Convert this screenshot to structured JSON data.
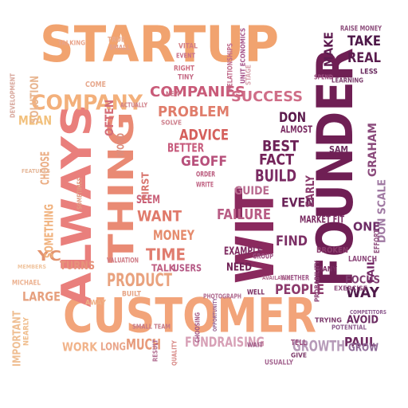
{
  "words": [
    {
      "text": "STARTUP",
      "color": "#f1a36f"
    },
    {
      "text": "CUSTOMER",
      "color": "#f2a47a"
    },
    {
      "text": "FOUNDER",
      "color": "#6f1f54"
    },
    {
      "text": "ALWAYS",
      "color": "#e97f7c"
    },
    {
      "text": "THING",
      "color": "#e98a74"
    },
    {
      "text": "WIT",
      "color": "#8a2a5e"
    },
    {
      "text": "COMPANY",
      "color": "#f3b07b"
    },
    {
      "text": "COMPANIES",
      "color": "#c95b79"
    },
    {
      "text": "SUCCESS",
      "color": "#cf6d87"
    },
    {
      "text": "PROBLEM",
      "color": "#e07d6b"
    },
    {
      "text": "ADVICE",
      "color": "#d5605c"
    },
    {
      "text": "BETTER",
      "color": "#c75b7c"
    },
    {
      "text": "GEOFF",
      "color": "#b7507b"
    },
    {
      "text": "DON",
      "color": "#5b1a4c"
    },
    {
      "text": "BEST",
      "color": "#6d2257"
    },
    {
      "text": "FACT",
      "color": "#74245a"
    },
    {
      "text": "BUILD",
      "color": "#7a2a62"
    },
    {
      "text": "GUIDE",
      "color": "#b86a8f"
    },
    {
      "text": "EVEN",
      "color": "#6a2257"
    },
    {
      "text": "FIND",
      "color": "#7c2f65"
    },
    {
      "text": "PEOPLE",
      "color": "#8c3a6c"
    },
    {
      "text": "FAILURE",
      "color": "#b85d85"
    },
    {
      "text": "WANT",
      "color": "#e07a6b"
    },
    {
      "text": "MONEY",
      "color": "#e58b6c"
    },
    {
      "text": "SEEM",
      "color": "#c96179"
    },
    {
      "text": "TIME",
      "color": "#e07c6e"
    },
    {
      "text": "PRODUCT",
      "color": "#e9a27e"
    },
    {
      "text": "TALK",
      "color": "#c05e82"
    },
    {
      "text": "USERS",
      "color": "#b55985"
    },
    {
      "text": "NEED",
      "color": "#6e2054"
    },
    {
      "text": "EXAMPLE",
      "color": "#7e2a60"
    },
    {
      "text": "FUNDRAISING",
      "color": "#d7a0b6"
    },
    {
      "text": "GROWTH",
      "color": "#b69ab8"
    },
    {
      "text": "MUCH",
      "color": "#e79a7a"
    },
    {
      "text": "WORK",
      "color": "#f1b38a"
    },
    {
      "text": "LONG",
      "color": "#e9a58a"
    },
    {
      "text": "YC",
      "color": "#e3946f"
    },
    {
      "text": "LARGE",
      "color": "#e6a07e"
    },
    {
      "text": "CHOOSE",
      "color": "#ebae85"
    },
    {
      "text": "SOMETHING",
      "color": "#f0b27e"
    },
    {
      "text": "TURNS",
      "color": "#e6937b"
    },
    {
      "text": "MEAN",
      "color": "#f2c07b"
    },
    {
      "text": "SOLUTION",
      "color": "#e8b590"
    },
    {
      "text": "IMPORTANT",
      "color": "#efbe92"
    },
    {
      "text": "OFTEN",
      "color": "#d46c77"
    },
    {
      "text": "TAKE",
      "color": "#4d1848"
    },
    {
      "text": "REAL",
      "color": "#5a1d4e"
    },
    {
      "text": "MAKE",
      "color": "#5e1c50"
    },
    {
      "text": "PAUL",
      "color": "#6e2a60"
    },
    {
      "text": "GRAHAM",
      "color": "#8b4b7c"
    },
    {
      "text": "DON SCALE",
      "color": "#a07aa3"
    },
    {
      "text": "ONE",
      "color": "#6d2d66"
    },
    {
      "text": "WAY",
      "color": "#4f1949"
    },
    {
      "text": "FOCUS",
      "color": "#7f3d70"
    },
    {
      "text": "AVOID",
      "color": "#6b2b61"
    },
    {
      "text": "GROW",
      "color": "#8f6b98"
    },
    {
      "text": "FAIL",
      "color": "#732865"
    },
    {
      "text": "LAUNCH",
      "color": "#8d4a7c"
    },
    {
      "text": "EFFORT",
      "color": "#955985"
    },
    {
      "text": "MARKET FIT",
      "color": "#7a2c62"
    },
    {
      "text": "EARLY",
      "color": "#8a3b6c"
    },
    {
      "text": "ALMOST",
      "color": "#7a2b62"
    },
    {
      "text": "USUALLY",
      "color": "#a46590"
    },
    {
      "text": "ACTUALLY",
      "color": "#d07f88"
    },
    {
      "text": "SAM",
      "color": "#6b2b5c"
    },
    {
      "text": "WRITE",
      "color": "#c06383"
    },
    {
      "text": "ORDER",
      "color": "#b9587b"
    },
    {
      "text": "FIRST",
      "color": "#d8766f"
    },
    {
      "text": "WORD",
      "color": "#dd8d7d"
    },
    {
      "text": "RAISE MONEY",
      "color": "#8d4e7c"
    },
    {
      "text": "LEARNING",
      "color": "#7a3b6b"
    },
    {
      "text": "STAGE",
      "color": "#d8a3ae"
    },
    {
      "text": "FEATURES",
      "color": "#e6b99b"
    },
    {
      "text": "VALUATION",
      "color": "#cf7c86"
    },
    {
      "text": "BROKEN",
      "color": "#8c3e6e"
    },
    {
      "text": "TELL",
      "color": "#9a5080"
    },
    {
      "text": "CHOOSING",
      "color": "#a35986"
    },
    {
      "text": "RESULT",
      "color": "#b06b90"
    },
    {
      "text": "SMALL TEAM",
      "color": "#c57987"
    },
    {
      "text": "WAIT",
      "color": "#9c5a86"
    },
    {
      "text": "GIVE",
      "color": "#7d3b6b"
    },
    {
      "text": "LESS",
      "color": "#6a2b5f"
    },
    {
      "text": "POTENTIAL",
      "color": "#8e5e8e"
    },
    {
      "text": "EXERCISE",
      "color": "#8f4a7c"
    },
    {
      "text": "TRYING",
      "color": "#7d3b6d"
    },
    {
      "text": "MANY",
      "color": "#7a2c62"
    },
    {
      "text": "PROBABILITY",
      "color": "#8a4074"
    },
    {
      "text": "WHETHER",
      "color": "#a0598a"
    },
    {
      "text": "AVAILABLE",
      "color": "#b47194"
    },
    {
      "text": "GROUP",
      "color": "#9d4f80"
    },
    {
      "text": "WELL",
      "color": "#7a2c62"
    },
    {
      "text": "BUILT",
      "color": "#e6a383"
    },
    {
      "text": "AWAY",
      "color": "#efb188"
    },
    {
      "text": "NEARLY",
      "color": "#f0bd8c"
    },
    {
      "text": "MICHAEL",
      "color": "#ecb190"
    },
    {
      "text": "MEMBERS",
      "color": "#f0c5a0"
    },
    {
      "text": "TRUE",
      "color": "#e9a98b"
    },
    {
      "text": "SMALL",
      "color": "#e3a08d"
    },
    {
      "text": "COME",
      "color": "#e7a98e"
    },
    {
      "text": "RELATIONSHIPS",
      "color": "#c06b8b"
    },
    {
      "text": "SOLVE",
      "color": "#cd7f8c"
    },
    {
      "text": "NEW",
      "color": "#c76a82"
    },
    {
      "text": "TINY",
      "color": "#c56b86"
    },
    {
      "text": "RIGHT",
      "color": "#cd6d80"
    },
    {
      "text": "VITAL",
      "color": "#d37d84"
    },
    {
      "text": "EVENT",
      "color": "#c8708a"
    },
    {
      "text": "UNIT ECONOMICS",
      "color": "#a6548a"
    },
    {
      "text": "SPEND",
      "color": "#9c4f80"
    },
    {
      "text": "DEVELOPMENT",
      "color": "#d7a59a"
    },
    {
      "text": "SOMETIMES",
      "color": "#e29b82"
    },
    {
      "text": "TALKING",
      "color": "#e9a389"
    },
    {
      "text": "QUALITY",
      "color": "#d88a87"
    },
    {
      "text": "PHOTOGRAPH",
      "color": "#b06b90"
    },
    {
      "text": "COMPETITORS",
      "color": "#8d5a8e"
    },
    {
      "text": "OPPORTUNITY",
      "color": "#9a6a97"
    }
  ]
}
